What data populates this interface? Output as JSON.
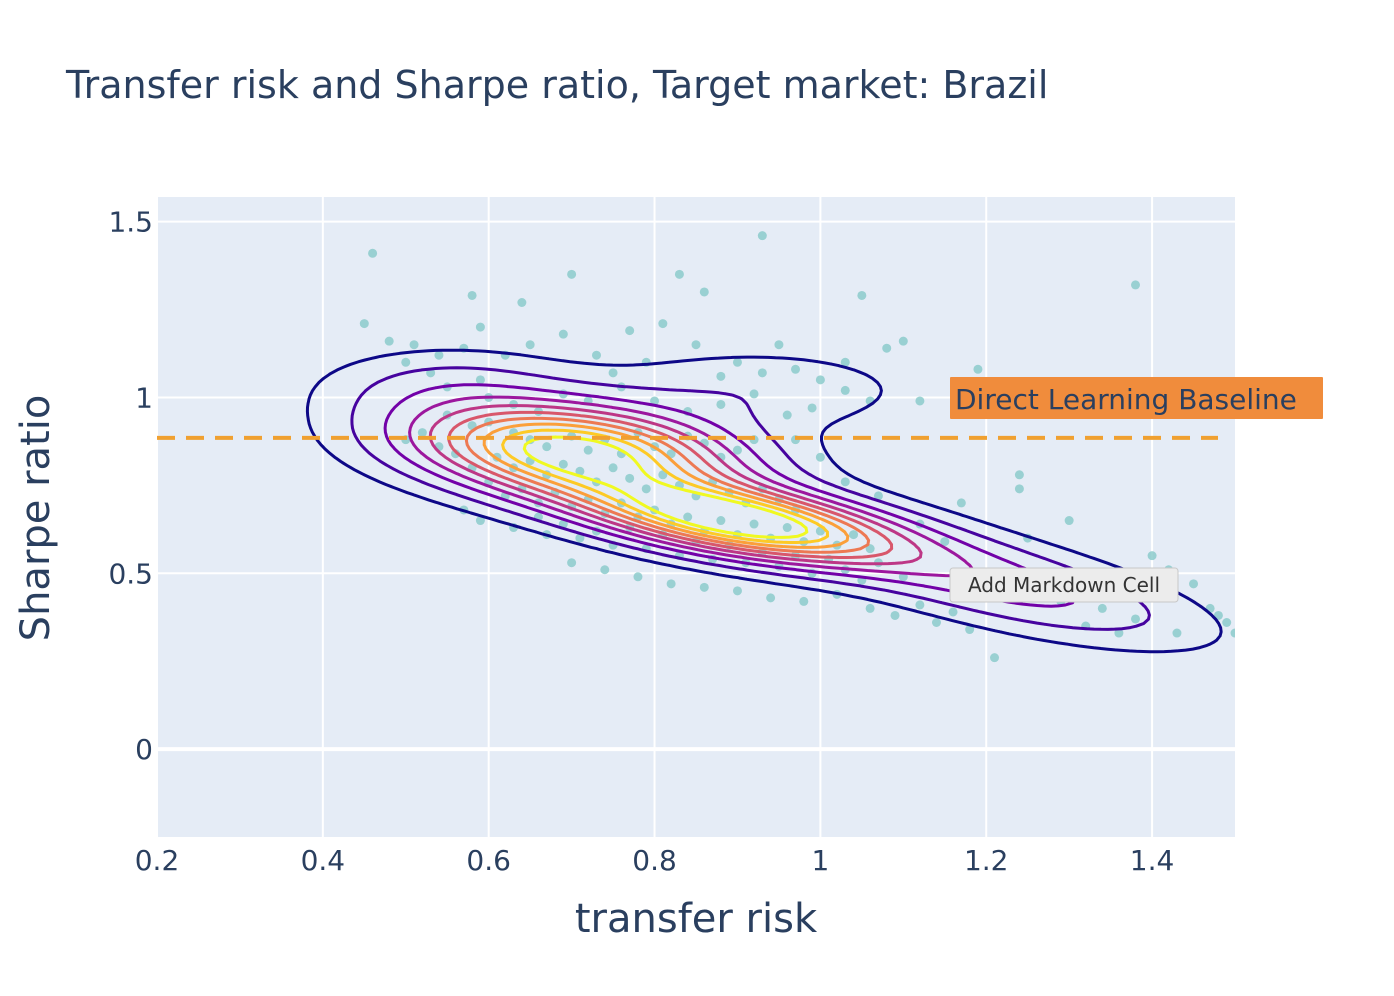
{
  "chart_data": {
    "type": "scatter",
    "title": "Transfer risk and Sharpe ratio, Target market: Brazil",
    "xlabel": "transfer risk",
    "ylabel": "Sharpe ratio",
    "xlim": [
      0.2,
      1.5
    ],
    "ylim": [
      -0.25,
      1.57
    ],
    "x_ticks": [
      0.2,
      0.4,
      0.6,
      0.8,
      1,
      1.2,
      1.4
    ],
    "x_tick_labels": [
      "0.2",
      "0.4",
      "0.6",
      "0.8",
      "1",
      "1.2",
      "1.4"
    ],
    "y_ticks": [
      0,
      0.5,
      1,
      1.5
    ],
    "y_tick_labels": [
      "0",
      "0.5",
      "1",
      "1.5"
    ],
    "grid": true,
    "overlay": "2D density contour",
    "reference_line": {
      "y": 0.885,
      "style": "dashed",
      "color": "#f0a030",
      "label": "Direct Learning Baseline"
    },
    "label_color": "#f08c3c",
    "plot_background": "#e5ecf6",
    "point_color": "#8ccbcb",
    "contour_colors": [
      "#0d0887",
      "#46039f",
      "#7201a8",
      "#9c179e",
      "#bd3786",
      "#d8576b",
      "#ed7953",
      "#fb9f3a",
      "#fdca26",
      "#f0f921"
    ],
    "series": [
      {
        "points": [
          [
            0.46,
            1.41
          ],
          [
            0.93,
            1.46
          ],
          [
            0.58,
            1.29
          ],
          [
            0.64,
            1.27
          ],
          [
            0.7,
            1.35
          ],
          [
            0.83,
            1.35
          ],
          [
            0.86,
            1.3
          ],
          [
            1.05,
            1.29
          ],
          [
            1.38,
            1.32
          ],
          [
            0.45,
            1.21
          ],
          [
            0.59,
            1.2
          ],
          [
            0.77,
            1.19
          ],
          [
            0.81,
            1.21
          ],
          [
            0.48,
            1.16
          ],
          [
            0.51,
            1.15
          ],
          [
            0.5,
            1.1
          ],
          [
            0.54,
            1.12
          ],
          [
            0.57,
            1.14
          ],
          [
            0.62,
            1.12
          ],
          [
            0.65,
            1.15
          ],
          [
            0.69,
            1.18
          ],
          [
            0.73,
            1.12
          ],
          [
            0.79,
            1.1
          ],
          [
            0.85,
            1.15
          ],
          [
            0.9,
            1.1
          ],
          [
            0.95,
            1.15
          ],
          [
            1.0,
            1.05
          ],
          [
            1.03,
            1.1
          ],
          [
            1.08,
            1.14
          ],
          [
            1.1,
            1.16
          ],
          [
            1.06,
            0.99
          ],
          [
            1.12,
            0.99
          ],
          [
            1.19,
            1.08
          ],
          [
            0.55,
            1.03
          ],
          [
            0.6,
            1.0
          ],
          [
            0.63,
            0.98
          ],
          [
            0.66,
            0.96
          ],
          [
            0.69,
            1.01
          ],
          [
            0.72,
            0.99
          ],
          [
            0.76,
            1.03
          ],
          [
            0.8,
            0.99
          ],
          [
            0.84,
            0.96
          ],
          [
            0.88,
            0.98
          ],
          [
            0.92,
            1.01
          ],
          [
            0.96,
            0.95
          ],
          [
            0.99,
            0.97
          ],
          [
            1.03,
            1.02
          ],
          [
            0.55,
            0.95
          ],
          [
            0.58,
            0.92
          ],
          [
            0.6,
            0.93
          ],
          [
            0.63,
            0.9
          ],
          [
            0.65,
            0.88
          ],
          [
            0.67,
            0.86
          ],
          [
            0.7,
            0.89
          ],
          [
            0.72,
            0.85
          ],
          [
            0.74,
            0.88
          ],
          [
            0.76,
            0.84
          ],
          [
            0.78,
            0.9
          ],
          [
            0.8,
            0.86
          ],
          [
            0.82,
            0.84
          ],
          [
            0.84,
            0.89
          ],
          [
            0.86,
            0.87
          ],
          [
            0.88,
            0.83
          ],
          [
            0.9,
            0.85
          ],
          [
            0.92,
            0.88
          ],
          [
            0.61,
            0.83
          ],
          [
            0.63,
            0.8
          ],
          [
            0.65,
            0.82
          ],
          [
            0.67,
            0.78
          ],
          [
            0.69,
            0.81
          ],
          [
            0.71,
            0.79
          ],
          [
            0.73,
            0.76
          ],
          [
            0.75,
            0.8
          ],
          [
            0.77,
            0.77
          ],
          [
            0.79,
            0.74
          ],
          [
            0.81,
            0.78
          ],
          [
            0.83,
            0.75
          ],
          [
            0.85,
            0.72
          ],
          [
            0.87,
            0.76
          ],
          [
            0.89,
            0.73
          ],
          [
            0.91,
            0.7
          ],
          [
            0.93,
            0.74
          ],
          [
            0.95,
            0.71
          ],
          [
            0.97,
            0.68
          ],
          [
            0.6,
            0.76
          ],
          [
            0.62,
            0.72
          ],
          [
            0.64,
            0.74
          ],
          [
            0.66,
            0.7
          ],
          [
            0.68,
            0.73
          ],
          [
            0.7,
            0.69
          ],
          [
            0.72,
            0.71
          ],
          [
            0.74,
            0.67
          ],
          [
            0.76,
            0.7
          ],
          [
            0.78,
            0.66
          ],
          [
            0.8,
            0.68
          ],
          [
            0.82,
            0.64
          ],
          [
            0.84,
            0.66
          ],
          [
            0.86,
            0.62
          ],
          [
            0.88,
            0.65
          ],
          [
            0.9,
            0.61
          ],
          [
            0.92,
            0.64
          ],
          [
            0.94,
            0.6
          ],
          [
            0.96,
            0.63
          ],
          [
            0.98,
            0.59
          ],
          [
            1.0,
            0.62
          ],
          [
            1.02,
            0.58
          ],
          [
            1.04,
            0.61
          ],
          [
            1.06,
            0.57
          ],
          [
            0.57,
            0.68
          ],
          [
            0.59,
            0.65
          ],
          [
            0.63,
            0.63
          ],
          [
            0.67,
            0.61
          ],
          [
            0.71,
            0.6
          ],
          [
            0.75,
            0.58
          ],
          [
            0.79,
            0.57
          ],
          [
            0.83,
            0.55
          ],
          [
            0.87,
            0.54
          ],
          [
            0.91,
            0.53
          ],
          [
            0.95,
            0.52
          ],
          [
            0.99,
            0.5
          ],
          [
            1.03,
            0.51
          ],
          [
            1.07,
            0.53
          ],
          [
            1.1,
            0.49
          ],
          [
            0.7,
            0.53
          ],
          [
            0.74,
            0.51
          ],
          [
            0.78,
            0.49
          ],
          [
            0.82,
            0.47
          ],
          [
            0.86,
            0.46
          ],
          [
            0.9,
            0.45
          ],
          [
            0.94,
            0.43
          ],
          [
            0.98,
            0.42
          ],
          [
            1.02,
            0.44
          ],
          [
            1.06,
            0.4
          ],
          [
            1.09,
            0.38
          ],
          [
            1.12,
            0.41
          ],
          [
            1.14,
            0.36
          ],
          [
            1.16,
            0.39
          ],
          [
            1.18,
            0.34
          ],
          [
            1.21,
            0.26
          ],
          [
            1.22,
            0.47
          ],
          [
            1.24,
            0.78
          ],
          [
            1.24,
            0.74
          ],
          [
            1.25,
            0.6
          ],
          [
            1.27,
            0.5
          ],
          [
            1.29,
            0.42
          ],
          [
            1.3,
            0.65
          ],
          [
            1.32,
            0.35
          ],
          [
            1.34,
            0.4
          ],
          [
            1.36,
            0.33
          ],
          [
            1.38,
            0.37
          ],
          [
            1.4,
            0.55
          ],
          [
            1.42,
            0.51
          ],
          [
            1.43,
            0.33
          ],
          [
            1.45,
            0.47
          ],
          [
            1.47,
            0.4
          ],
          [
            1.48,
            0.38
          ],
          [
            1.49,
            0.36
          ],
          [
            1.5,
            0.33
          ],
          [
            1.12,
            0.64
          ],
          [
            1.15,
            0.59
          ],
          [
            1.17,
            0.7
          ],
          [
            1.19,
            0.48
          ],
          [
            1.07,
            0.72
          ],
          [
            1.03,
            0.76
          ],
          [
            1.0,
            0.83
          ],
          [
            0.97,
            0.88
          ],
          [
            0.5,
            0.88
          ],
          [
            0.52,
            0.9
          ],
          [
            0.54,
            0.86
          ],
          [
            0.56,
            0.84
          ],
          [
            0.58,
            0.8
          ],
          [
            0.53,
            1.07
          ],
          [
            0.59,
            1.05
          ],
          [
            0.75,
            1.07
          ],
          [
            0.88,
            1.06
          ],
          [
            0.93,
            1.07
          ],
          [
            0.97,
            1.08
          ],
          [
            0.66,
            0.66
          ],
          [
            0.69,
            0.64
          ],
          [
            0.73,
            0.62
          ],
          [
            0.77,
            0.63
          ],
          [
            0.81,
            0.61
          ],
          [
            0.85,
            0.59
          ],
          [
            0.89,
            0.58
          ],
          [
            0.93,
            0.56
          ],
          [
            0.97,
            0.55
          ],
          [
            1.01,
            0.54
          ],
          [
            1.05,
            0.48
          ]
        ]
      }
    ]
  },
  "tooltip": {
    "text": "Add Markdown Cell"
  }
}
